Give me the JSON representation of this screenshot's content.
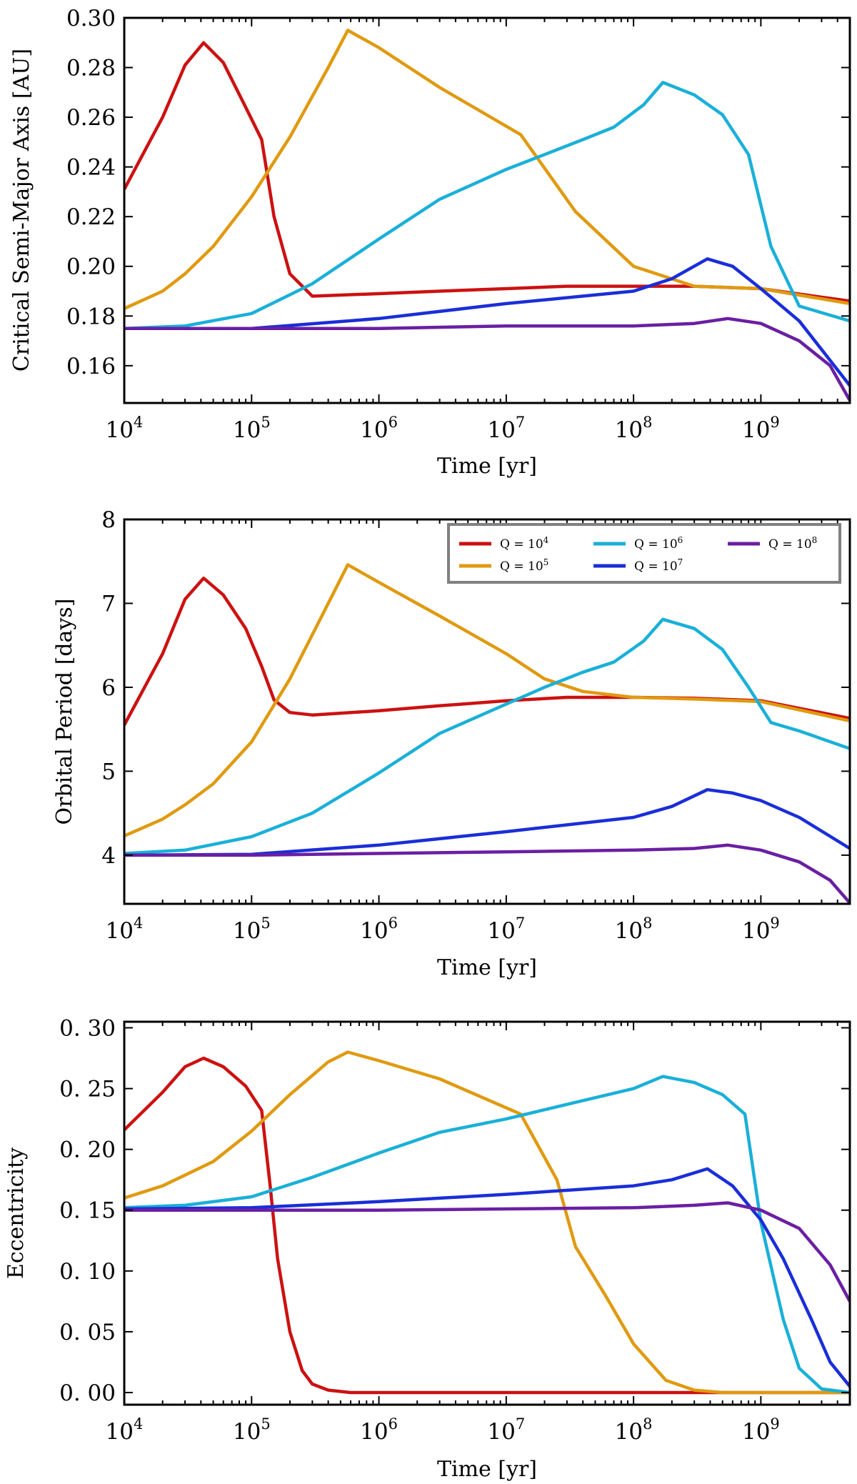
{
  "figure": {
    "description_panels": 3
  },
  "chart_data": [
    {
      "type": "line",
      "xscale": "log",
      "xlim": [
        10000,
        5000000000
      ],
      "ylim": [
        0.145,
        0.3
      ],
      "xlabel": "Time [yr]",
      "ylabel": "Critical Semi-Major Axis [AU]",
      "yticks": [
        "0.16",
        "0.18",
        "0.20",
        "0.22",
        "0.24",
        "0.26",
        "0.28",
        "0.30"
      ],
      "ytick_values": [
        0.16,
        0.18,
        0.2,
        0.22,
        0.24,
        0.26,
        0.28,
        0.3
      ],
      "xticks": [
        {
          "base": "10",
          "exp": "4"
        },
        {
          "base": "10",
          "exp": "5"
        },
        {
          "base": "10",
          "exp": "6"
        },
        {
          "base": "10",
          "exp": "7"
        },
        {
          "base": "10",
          "exp": "8"
        },
        {
          "base": "10",
          "exp": "9"
        }
      ],
      "legend": null,
      "series": [
        {
          "name": "Q = 10^4",
          "color": "#cc1111",
          "x": [
            10000,
            20000,
            30000,
            42000,
            60000,
            90000,
            120000,
            150000,
            200000,
            300000,
            1000000,
            3000000,
            10000000,
            30000000,
            100000000,
            300000000,
            1000000000,
            5000000000
          ],
          "y": [
            0.231,
            0.26,
            0.281,
            0.29,
            0.282,
            0.264,
            0.251,
            0.22,
            0.197,
            0.188,
            0.189,
            0.19,
            0.191,
            0.192,
            0.192,
            0.192,
            0.191,
            0.186
          ]
        },
        {
          "name": "Q = 10^5",
          "color": "#e09a10",
          "x": [
            10000,
            20000,
            30000,
            50000,
            100000,
            200000,
            400000,
            570000,
            1000000,
            3000000,
            13000000,
            35000000,
            100000000,
            300000000,
            1000000000,
            5000000000
          ],
          "y": [
            0.183,
            0.19,
            0.197,
            0.208,
            0.228,
            0.252,
            0.28,
            0.295,
            0.288,
            0.272,
            0.253,
            0.222,
            0.2,
            0.192,
            0.191,
            0.185
          ]
        },
        {
          "name": "Q = 10^6",
          "color": "#1ab0d8",
          "x": [
            10000,
            30000,
            100000,
            300000,
            1000000,
            3000000,
            10000000,
            20000000,
            40000000,
            70000000,
            120000000,
            170000000,
            300000000,
            500000000,
            800000000,
            1200000000,
            2000000000,
            5000000000
          ],
          "y": [
            0.175,
            0.176,
            0.181,
            0.193,
            0.211,
            0.227,
            0.239,
            0.245,
            0.251,
            0.256,
            0.265,
            0.274,
            0.269,
            0.261,
            0.245,
            0.208,
            0.184,
            0.178
          ]
        },
        {
          "name": "Q = 10^7",
          "color": "#1a2ed8",
          "x": [
            10000,
            100000,
            1000000,
            10000000,
            100000000,
            200000000,
            380000000,
            600000000,
            1000000000,
            2000000000,
            5000000000
          ],
          "y": [
            0.175,
            0.175,
            0.179,
            0.185,
            0.19,
            0.195,
            0.203,
            0.2,
            0.191,
            0.178,
            0.152
          ]
        },
        {
          "name": "Q = 10^8",
          "color": "#6a1fa2",
          "x": [
            10000,
            100000,
            1000000,
            10000000,
            100000000,
            300000000,
            550000000,
            1000000000,
            2000000000,
            3500000000,
            5000000000
          ],
          "y": [
            0.175,
            0.175,
            0.175,
            0.176,
            0.176,
            0.177,
            0.179,
            0.177,
            0.17,
            0.16,
            0.146
          ]
        }
      ]
    },
    {
      "type": "line",
      "xscale": "log",
      "xlim": [
        10000,
        5000000000
      ],
      "ylim": [
        3.42,
        8.0
      ],
      "xlabel": "Time [yr]",
      "ylabel": "Orbital Period [days]",
      "yticks": [
        "4",
        "5",
        "6",
        "7",
        "8"
      ],
      "ytick_values": [
        4,
        5,
        6,
        7,
        8
      ],
      "xticks": [
        {
          "base": "10",
          "exp": "4"
        },
        {
          "base": "10",
          "exp": "5"
        },
        {
          "base": "10",
          "exp": "6"
        },
        {
          "base": "10",
          "exp": "7"
        },
        {
          "base": "10",
          "exp": "8"
        },
        {
          "base": "10",
          "exp": "9"
        }
      ],
      "legend": {
        "placement": "top-right",
        "entries": [
          {
            "label": "Q = ",
            "exp": "4",
            "color": "#cc1111"
          },
          {
            "label": "Q = ",
            "exp": "6",
            "color": "#1ab0d8"
          },
          {
            "label": "Q = ",
            "exp": "8",
            "color": "#6a1fa2"
          },
          {
            "label": "Q = ",
            "exp": "5",
            "color": "#e09a10"
          },
          {
            "label": "Q = ",
            "exp": "7",
            "color": "#1a2ed8"
          }
        ]
      },
      "series": [
        {
          "name": "Q = 10^4",
          "color": "#cc1111",
          "x": [
            10000,
            20000,
            30000,
            42000,
            60000,
            90000,
            120000,
            150000,
            200000,
            300000,
            1000000,
            3000000,
            10000000,
            30000000,
            100000000,
            300000000,
            1000000000,
            5000000000
          ],
          "y": [
            5.55,
            6.4,
            7.05,
            7.3,
            7.1,
            6.7,
            6.25,
            5.85,
            5.7,
            5.67,
            5.72,
            5.78,
            5.84,
            5.88,
            5.88,
            5.87,
            5.84,
            5.63
          ]
        },
        {
          "name": "Q = 10^5",
          "color": "#e09a10",
          "x": [
            10000,
            20000,
            30000,
            50000,
            100000,
            200000,
            400000,
            570000,
            1000000,
            3000000,
            10000000,
            20000000,
            40000000,
            100000000,
            300000000,
            1000000000,
            5000000000
          ],
          "y": [
            4.23,
            4.43,
            4.6,
            4.85,
            5.35,
            6.1,
            7.0,
            7.46,
            7.25,
            6.85,
            6.4,
            6.1,
            5.95,
            5.88,
            5.86,
            5.83,
            5.6
          ]
        },
        {
          "name": "Q = 10^6",
          "color": "#1ab0d8",
          "x": [
            10000,
            30000,
            100000,
            300000,
            1000000,
            3000000,
            10000000,
            20000000,
            40000000,
            70000000,
            120000000,
            170000000,
            300000000,
            500000000,
            800000000,
            1200000000,
            2000000000,
            5000000000
          ],
          "y": [
            4.02,
            4.06,
            4.22,
            4.5,
            4.98,
            5.45,
            5.8,
            6.0,
            6.18,
            6.3,
            6.55,
            6.81,
            6.7,
            6.45,
            6.0,
            5.58,
            5.48,
            5.27
          ]
        },
        {
          "name": "Q = 10^7",
          "color": "#1a2ed8",
          "x": [
            10000,
            100000,
            1000000,
            10000000,
            100000000,
            200000000,
            380000000,
            600000000,
            1000000000,
            2000000000,
            5000000000
          ],
          "y": [
            4.0,
            4.01,
            4.12,
            4.28,
            4.45,
            4.58,
            4.78,
            4.74,
            4.65,
            4.45,
            4.08
          ]
        },
        {
          "name": "Q = 10^8",
          "color": "#6a1fa2",
          "x": [
            10000,
            100000,
            1000000,
            10000000,
            100000000,
            300000000,
            550000000,
            1000000000,
            2000000000,
            3500000000,
            5000000000
          ],
          "y": [
            4.0,
            4.0,
            4.02,
            4.04,
            4.06,
            4.08,
            4.12,
            4.06,
            3.92,
            3.7,
            3.43
          ]
        }
      ]
    },
    {
      "type": "line",
      "xscale": "log",
      "xlim": [
        10000,
        5000000000
      ],
      "ylim": [
        -0.01,
        0.305
      ],
      "xlabel": "Time [yr]",
      "ylabel": "Eccentricity",
      "yticks": [
        "0. 00",
        "0. 05",
        "0. 10",
        "0. 15",
        "0. 20",
        "0. 25",
        "0. 30"
      ],
      "ytick_values": [
        0.0,
        0.05,
        0.1,
        0.15,
        0.2,
        0.25,
        0.3
      ],
      "xticks": [
        {
          "base": "10",
          "exp": "4"
        },
        {
          "base": "10",
          "exp": "5"
        },
        {
          "base": "10",
          "exp": "6"
        },
        {
          "base": "10",
          "exp": "7"
        },
        {
          "base": "10",
          "exp": "8"
        },
        {
          "base": "10",
          "exp": "9"
        }
      ],
      "legend": null,
      "series": [
        {
          "name": "Q = 10^4",
          "color": "#cc1111",
          "x": [
            10000,
            20000,
            30000,
            42000,
            60000,
            90000,
            120000,
            140000,
            160000,
            200000,
            250000,
            300000,
            400000,
            600000,
            1000000,
            100000000,
            5000000000
          ],
          "y": [
            0.216,
            0.247,
            0.268,
            0.275,
            0.268,
            0.252,
            0.232,
            0.17,
            0.11,
            0.05,
            0.018,
            0.007,
            0.002,
            0.0,
            0.0,
            0.0,
            0.0
          ]
        },
        {
          "name": "Q = 10^5",
          "color": "#e09a10",
          "x": [
            10000,
            20000,
            50000,
            100000,
            200000,
            400000,
            570000,
            1000000,
            3000000,
            13000000,
            25000000,
            35000000,
            60000000,
            100000000,
            180000000,
            300000000,
            500000000,
            1000000000,
            5000000000
          ],
          "y": [
            0.16,
            0.17,
            0.19,
            0.215,
            0.245,
            0.272,
            0.28,
            0.273,
            0.258,
            0.229,
            0.175,
            0.12,
            0.08,
            0.04,
            0.01,
            0.002,
            0.0,
            0.0,
            0.0
          ]
        },
        {
          "name": "Q = 10^6",
          "color": "#1ab0d8",
          "x": [
            10000,
            30000,
            100000,
            300000,
            1000000,
            3000000,
            10000000,
            30000000,
            100000000,
            170000000,
            300000000,
            500000000,
            750000000,
            1000000000,
            1500000000,
            2000000000,
            3000000000,
            5000000000
          ],
          "y": [
            0.152,
            0.154,
            0.161,
            0.177,
            0.197,
            0.214,
            0.225,
            0.237,
            0.25,
            0.26,
            0.255,
            0.245,
            0.229,
            0.14,
            0.06,
            0.02,
            0.003,
            0.0
          ]
        },
        {
          "name": "Q = 10^7",
          "color": "#1a2ed8",
          "x": [
            10000,
            100000,
            1000000,
            10000000,
            100000000,
            200000000,
            380000000,
            600000000,
            1000000000,
            1500000000,
            2500000000,
            3500000000,
            5000000000
          ],
          "y": [
            0.151,
            0.152,
            0.157,
            0.163,
            0.17,
            0.175,
            0.184,
            0.17,
            0.142,
            0.11,
            0.06,
            0.025,
            0.005
          ]
        },
        {
          "name": "Q = 10^8",
          "color": "#6a1fa2",
          "x": [
            10000,
            100000,
            1000000,
            10000000,
            100000000,
            300000000,
            550000000,
            1000000000,
            2000000000,
            3500000000,
            5000000000
          ],
          "y": [
            0.15,
            0.15,
            0.15,
            0.151,
            0.152,
            0.154,
            0.156,
            0.15,
            0.135,
            0.105,
            0.075
          ]
        }
      ]
    }
  ]
}
